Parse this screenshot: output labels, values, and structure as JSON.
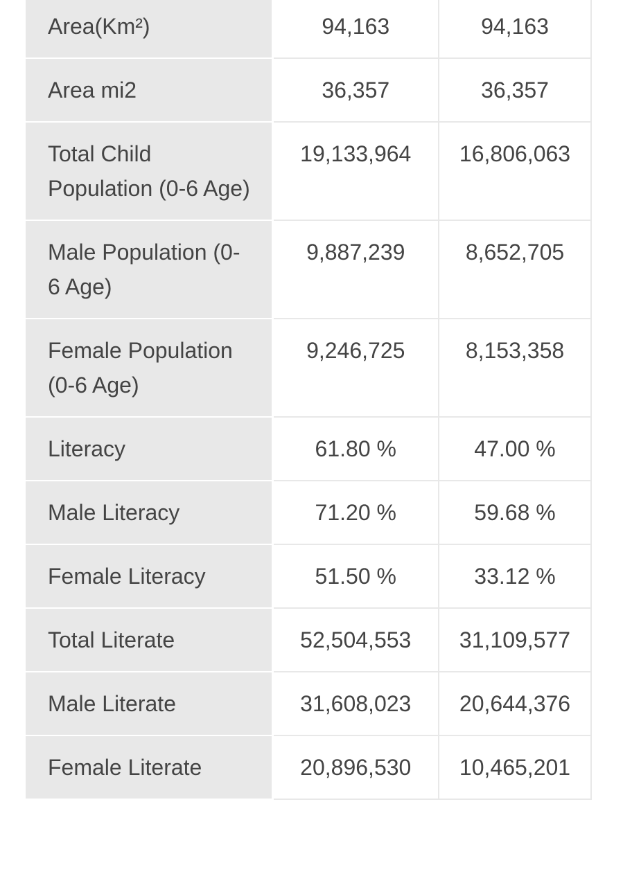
{
  "table": {
    "rows": [
      [
        "Area(Km²)",
        "94,163",
        "94,163"
      ],
      [
        "Area mi2",
        "36,357",
        "36,357"
      ],
      [
        "Total Child Population (0-6 Age)",
        "19,133,964",
        "16,806,063"
      ],
      [
        "Male Population (0-6 Age)",
        "9,887,239",
        "8,652,705"
      ],
      [
        "Female Population (0-6 Age)",
        "9,246,725",
        "8,153,358"
      ],
      [
        "Literacy",
        "61.80 %",
        "47.00 %"
      ],
      [
        "Male Literacy",
        "71.20 %",
        "59.68 %"
      ],
      [
        "Female Literacy",
        "51.50 %",
        "33.12 %"
      ],
      [
        "Total Literate",
        "52,504,553",
        "31,109,577"
      ],
      [
        "Male Literate",
        "31,608,023",
        "20,644,376"
      ],
      [
        "Female Literate",
        "20,896,530",
        "10,465,201"
      ]
    ]
  }
}
